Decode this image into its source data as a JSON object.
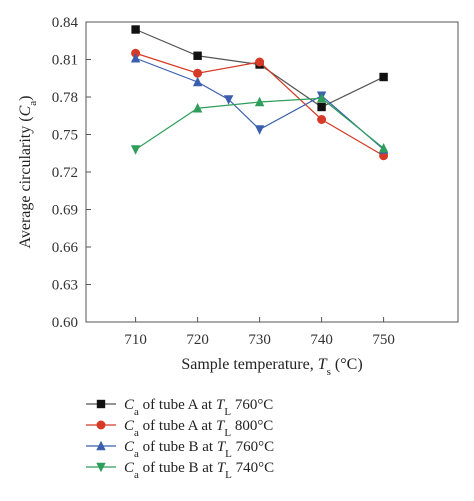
{
  "chart_data": {
    "type": "line",
    "title": "",
    "xlabel": {
      "prefix": "Sample temperature, ",
      "symbol": "T",
      "sub": "s",
      "suffix": " (°C)"
    },
    "ylabel": {
      "prefix": "Average circularity (",
      "symbol": "C",
      "sub": "a",
      "suffix": ")"
    },
    "xlim": [
      702,
      762
    ],
    "ylim": [
      0.6,
      0.84
    ],
    "x_ticks": [
      710,
      720,
      730,
      740,
      750
    ],
    "y_ticks": [
      0.6,
      0.63,
      0.66,
      0.69,
      0.72,
      0.75,
      0.78,
      0.81,
      0.84
    ],
    "y_tick_labels": [
      "0.60",
      "0.63",
      "0.66",
      "0.69",
      "0.72",
      "0.75",
      "0.78",
      "0.81",
      "0.84"
    ],
    "grid": false,
    "legend_position": "bottom",
    "series": [
      {
        "name": "Ca of tube A at TL 760°C",
        "legend": {
          "sym": "C",
          "sub": "a",
          "mid": " of tube A at ",
          "sym2": "T",
          "sub2": "L",
          "tail": " 760°C"
        },
        "color": "#555555",
        "marker_color": "#111111",
        "marker": "square",
        "x": [
          710,
          720,
          730,
          740,
          750
        ],
        "y": [
          0.834,
          0.813,
          0.806,
          0.772,
          0.796
        ]
      },
      {
        "name": "Ca of tube A at TL 800°C",
        "legend": {
          "sym": "C",
          "sub": "a",
          "mid": " of tube A at ",
          "sym2": "T",
          "sub2": "L",
          "tail": " 800°C"
        },
        "color": "#d63a26",
        "marker_color": "#d63a26",
        "marker": "circle",
        "x": [
          710,
          720,
          730,
          740,
          750
        ],
        "y": [
          0.815,
          0.799,
          0.808,
          0.762,
          0.733
        ]
      },
      {
        "name": "Ca of tube B at TL 760°C",
        "legend": {
          "sym": "C",
          "sub": "a",
          "mid": " of tube B at ",
          "sym2": "T",
          "sub2": "L",
          "tail": " 760°C"
        },
        "color": "#3b5fae",
        "marker_color": "#3b5fae",
        "marker": "triangle-mixed",
        "x": [
          710,
          720,
          725,
          730,
          740,
          750
        ],
        "y": [
          0.811,
          0.792,
          0.778,
          0.754,
          0.781,
          0.738
        ],
        "marker_dirs": [
          "up",
          "up",
          "down",
          "down",
          "down",
          "up"
        ]
      },
      {
        "name": "Ca of tube B at TL 740°C",
        "legend": {
          "sym": "C",
          "sub": "a",
          "mid": " of tube B at ",
          "sym2": "T",
          "sub2": "L",
          "tail": " 740°C"
        },
        "color": "#2e9e5a",
        "marker_color": "#2e9e5a",
        "marker": "triangle-mixed",
        "x": [
          710,
          720,
          730,
          740,
          750
        ],
        "y": [
          0.738,
          0.771,
          0.776,
          0.779,
          0.739
        ],
        "marker_dirs": [
          "down",
          "up",
          "up",
          "up",
          "up"
        ]
      }
    ]
  }
}
